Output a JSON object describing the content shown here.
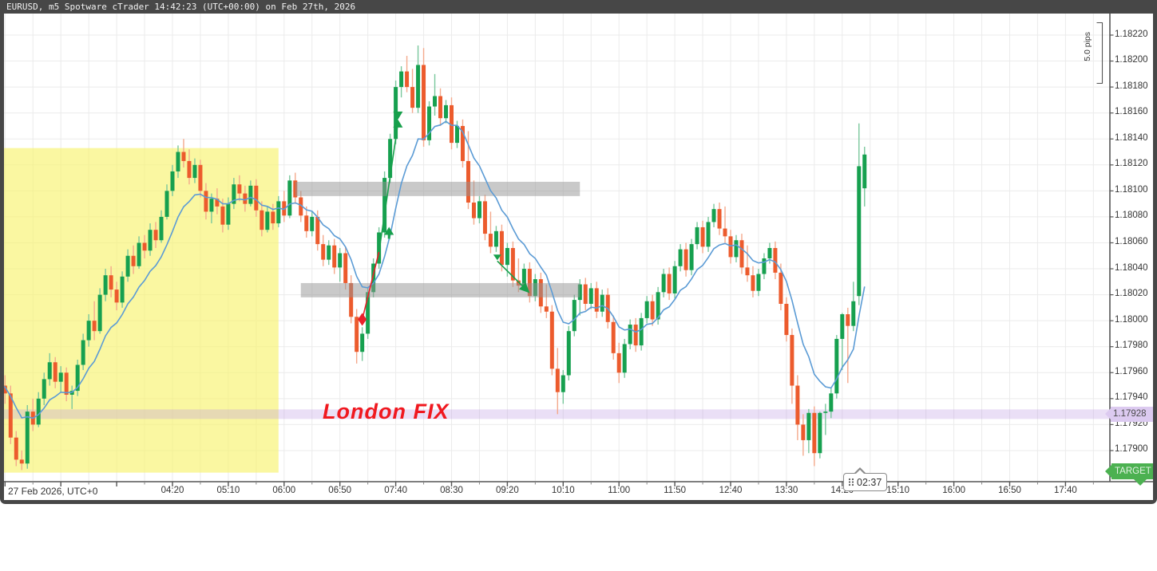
{
  "window": {
    "title": "EURUSD, m5 Spotware cTrader 14:42:23 (UTC+00:00) on Feb 27th, 2026"
  },
  "colors": {
    "chrome": "#474747",
    "grid": "#ebebeb",
    "axis_line": "#555555",
    "candle_up_body": "#16a04f",
    "candle_up_wick": "#79c79c",
    "candle_down_body": "#ec5b2d",
    "candle_down_wick": "#f4a98c",
    "moving_average": "#5b9bd5",
    "session_zone_fill": "rgba(247,242,110,0.65)",
    "supply_demand_fill": "rgba(148,148,148,0.50)",
    "fix_band_fill": "rgba(186,150,224,0.30)",
    "fix_tag_bg": "#dccaf0",
    "annotation_red": "#e8212b",
    "annotation_green": "#17a04b",
    "target_green": "#4cb151"
  },
  "price_axis": {
    "ticks": [
      "1.18220",
      "1.18200",
      "1.18180",
      "1.18160",
      "1.18140",
      "1.18120",
      "1.18100",
      "1.18080",
      "1.18060",
      "1.18040",
      "1.18020",
      "1.18000",
      "1.17980",
      "1.17960",
      "1.17940",
      "1.17920",
      "1.17900"
    ],
    "highlight": {
      "label": "1.17928",
      "price": 1.17928
    }
  },
  "time_axis": {
    "date_label": "27 Feb 2026, UTC+0",
    "ticks": [
      "04:20",
      "05:10",
      "06:00",
      "06:50",
      "07:40",
      "08:30",
      "09:20",
      "10:10",
      "11:00",
      "11:50",
      "12:40",
      "13:30",
      "14:20",
      "15:10",
      "16:00",
      "16:50",
      "17:40"
    ]
  },
  "scale_ruler": {
    "label": "5.0 pips"
  },
  "countdown": {
    "value": "02:37"
  },
  "target_marker": {
    "label": "TARGET",
    "price": 1.17884
  },
  "annotations": {
    "london_fix": {
      "text": "London FIX",
      "price": 1.17928
    },
    "session_zone": {
      "time_start": "01:45",
      "time_end": "05:55",
      "price_top": 1.18133,
      "price_bottom": 1.17883
    },
    "supply_zone": {
      "time_start": "06:10",
      "time_end": "10:25",
      "price_top": 1.18107,
      "price_bottom": 1.18096
    },
    "demand_zone": {
      "time_start": "06:15",
      "time_end": "10:25",
      "price_top": 1.18029,
      "price_bottom": 1.18018
    },
    "trade": {
      "entry_diamond": {
        "time": "07:10",
        "price": 1.18001
      },
      "path_mid": {
        "time": "07:25",
        "price": 1.18053
      },
      "path_end": {
        "time": "07:42",
        "price": 1.18152
      },
      "buy_arrow": {
        "time": "07:34",
        "price": 1.18068
      },
      "close_marker": {
        "time": "07:42",
        "price": 1.18155
      }
    },
    "sell_arrow": {
      "start": {
        "time": "09:11",
        "price": 1.18046
      },
      "end": {
        "time": "09:38",
        "price": 1.18023
      }
    }
  },
  "chart_data": {
    "type": "candlestick",
    "symbol": "EURUSD",
    "timeframe": "m5",
    "title": "EURUSD m5 - 27 Feb 2026",
    "start_time": "01:45",
    "interval_min": 5,
    "price_base": 1.17,
    "pip": 0.0001,
    "ohlc_unit": "pips above 1.17000, order [open,high,low,close]",
    "ylim": [
      1.1786,
      1.1823
    ],
    "xlim": [
      "01:45",
      "17:55"
    ],
    "grid": true,
    "moving_average": {
      "type": "EMA",
      "period": 10
    },
    "candles_pips": [
      [
        95.5,
        96.2,
        94.6,
        95.0
      ],
      [
        95.0,
        95.8,
        93.6,
        94.4
      ],
      [
        94.4,
        95.0,
        90.5,
        91.0
      ],
      [
        91.0,
        91.5,
        88.8,
        89.3
      ],
      [
        89.3,
        90.0,
        88.5,
        89.0
      ],
      [
        89.0,
        93.5,
        88.6,
        93.0
      ],
      [
        93.0,
        94.0,
        91.5,
        92.0
      ],
      [
        92.0,
        94.5,
        91.8,
        94.0
      ],
      [
        94.0,
        96.0,
        93.5,
        95.5
      ],
      [
        95.5,
        97.5,
        95.0,
        96.8
      ],
      [
        96.8,
        97.2,
        94.8,
        95.3
      ],
      [
        95.3,
        96.5,
        94.5,
        96.0
      ],
      [
        96.0,
        96.4,
        93.8,
        94.3
      ],
      [
        94.3,
        95.0,
        93.2,
        94.6
      ],
      [
        94.6,
        97.0,
        94.2,
        96.6
      ],
      [
        96.6,
        99.0,
        96.2,
        98.5
      ],
      [
        98.5,
        100.5,
        98.0,
        100.0
      ],
      [
        100.0,
        101.5,
        98.5,
        99.2
      ],
      [
        99.2,
        102.5,
        99.0,
        102.0
      ],
      [
        102.0,
        104.0,
        101.5,
        103.5
      ],
      [
        103.5,
        104.2,
        101.8,
        102.4
      ],
      [
        102.4,
        103.0,
        100.8,
        101.4
      ],
      [
        101.4,
        103.8,
        101.0,
        103.4
      ],
      [
        103.4,
        105.5,
        103.0,
        105.0
      ],
      [
        105.0,
        105.8,
        103.6,
        104.2
      ],
      [
        104.2,
        106.5,
        104.0,
        106.0
      ],
      [
        106.0,
        106.6,
        104.8,
        105.4
      ],
      [
        105.4,
        107.5,
        105.0,
        107.0
      ],
      [
        107.0,
        107.6,
        105.6,
        106.2
      ],
      [
        106.2,
        108.5,
        106.0,
        108.0
      ],
      [
        108.0,
        110.5,
        107.8,
        110.0
      ],
      [
        110.0,
        112.0,
        109.6,
        111.5
      ],
      [
        111.5,
        113.5,
        111.0,
        113.0
      ],
      [
        113.0,
        114.0,
        111.8,
        112.3
      ],
      [
        112.3,
        113.2,
        110.5,
        111.0
      ],
      [
        111.0,
        112.5,
        110.6,
        112.0
      ],
      [
        112.0,
        112.4,
        109.5,
        110.0
      ],
      [
        110.0,
        110.6,
        107.8,
        108.4
      ],
      [
        108.4,
        109.8,
        107.5,
        109.4
      ],
      [
        109.4,
        110.2,
        108.2,
        108.8
      ],
      [
        108.8,
        109.4,
        106.8,
        107.4
      ],
      [
        107.4,
        109.5,
        107.0,
        109.0
      ],
      [
        109.0,
        111.0,
        108.6,
        110.5
      ],
      [
        110.5,
        111.2,
        109.2,
        109.8
      ],
      [
        109.8,
        110.4,
        108.4,
        109.0
      ],
      [
        109.0,
        110.8,
        108.8,
        110.4
      ],
      [
        110.4,
        110.9,
        108.0,
        108.5
      ],
      [
        108.5,
        109.2,
        106.5,
        107.0
      ],
      [
        107.0,
        108.8,
        106.8,
        108.4
      ],
      [
        108.4,
        109.0,
        107.0,
        107.5
      ],
      [
        107.5,
        109.6,
        107.2,
        109.2
      ],
      [
        109.2,
        110.0,
        107.6,
        108.1
      ],
      [
        108.1,
        111.2,
        107.9,
        110.8
      ],
      [
        110.8,
        111.4,
        109.0,
        109.5
      ],
      [
        109.5,
        110.0,
        107.6,
        108.1
      ],
      [
        108.1,
        108.8,
        106.4,
        106.9
      ],
      [
        106.9,
        108.4,
        106.5,
        108.0
      ],
      [
        108.0,
        108.5,
        105.4,
        105.9
      ],
      [
        105.9,
        106.6,
        104.2,
        104.7
      ],
      [
        104.7,
        106.2,
        104.3,
        105.8
      ],
      [
        105.8,
        106.3,
        103.6,
        104.1
      ],
      [
        104.1,
        105.6,
        103.0,
        105.2
      ],
      [
        105.2,
        105.7,
        102.4,
        102.9
      ],
      [
        102.9,
        103.5,
        99.8,
        100.3
      ],
      [
        100.3,
        100.9,
        96.7,
        97.6
      ],
      [
        97.6,
        99.5,
        96.9,
        99.0
      ],
      [
        99.0,
        102.6,
        98.6,
        102.2
      ],
      [
        102.2,
        104.8,
        101.8,
        104.4
      ],
      [
        104.4,
        107.2,
        104.0,
        106.8
      ],
      [
        106.8,
        111.5,
        106.4,
        111.0
      ],
      [
        111.0,
        114.4,
        110.6,
        114.0
      ],
      [
        114.0,
        118.5,
        113.6,
        118.0
      ],
      [
        118.0,
        119.6,
        117.2,
        119.2
      ],
      [
        119.2,
        120.4,
        117.6,
        118.0
      ],
      [
        118.0,
        119.4,
        116.0,
        116.4
      ],
      [
        116.4,
        121.2,
        116.0,
        119.7
      ],
      [
        119.7,
        121.0,
        113.4,
        113.9
      ],
      [
        113.9,
        116.9,
        113.5,
        116.5
      ],
      [
        116.5,
        119.0,
        115.8,
        117.3
      ],
      [
        117.3,
        117.9,
        115.0,
        115.6
      ],
      [
        115.6,
        117.0,
        115.2,
        116.6
      ],
      [
        116.6,
        117.2,
        113.2,
        113.7
      ],
      [
        113.7,
        115.4,
        113.3,
        115.0
      ],
      [
        115.0,
        115.5,
        111.8,
        112.3
      ],
      [
        112.3,
        114.6,
        108.6,
        109.1
      ],
      [
        109.1,
        110.8,
        107.4,
        107.9
      ],
      [
        107.9,
        109.6,
        107.5,
        109.2
      ],
      [
        109.2,
        109.7,
        106.2,
        106.7
      ],
      [
        106.7,
        108.4,
        105.2,
        105.7
      ],
      [
        105.7,
        107.3,
        105.3,
        106.9
      ],
      [
        106.9,
        107.4,
        103.8,
        104.3
      ],
      [
        104.3,
        106.0,
        103.4,
        105.6
      ],
      [
        105.6,
        106.1,
        102.6,
        103.1
      ],
      [
        103.1,
        104.8,
        102.2,
        102.7
      ],
      [
        102.7,
        104.4,
        102.3,
        104.0
      ],
      [
        104.0,
        104.5,
        101.4,
        101.9
      ],
      [
        101.9,
        103.6,
        101.5,
        103.2
      ],
      [
        103.2,
        103.7,
        100.6,
        101.1
      ],
      [
        101.1,
        102.8,
        100.2,
        100.7
      ],
      [
        100.7,
        101.2,
        95.8,
        96.3
      ],
      [
        96.3,
        97.9,
        92.8,
        94.5
      ],
      [
        94.5,
        96.2,
        93.6,
        95.8
      ],
      [
        95.8,
        99.6,
        95.4,
        99.2
      ],
      [
        99.2,
        102.0,
        98.8,
        101.6
      ],
      [
        101.6,
        103.2,
        100.4,
        102.8
      ],
      [
        102.8,
        103.3,
        100.8,
        101.3
      ],
      [
        101.3,
        102.9,
        100.9,
        102.5
      ],
      [
        102.5,
        103.0,
        100.2,
        100.7
      ],
      [
        100.7,
        102.4,
        100.3,
        102.0
      ],
      [
        102.0,
        102.5,
        99.4,
        99.9
      ],
      [
        99.9,
        100.4,
        97.0,
        97.5
      ],
      [
        97.5,
        98.3,
        95.2,
        96.0
      ],
      [
        96.0,
        98.6,
        95.6,
        98.2
      ],
      [
        98.2,
        100.1,
        97.8,
        99.7
      ],
      [
        99.7,
        100.2,
        97.6,
        98.1
      ],
      [
        98.1,
        100.6,
        97.7,
        100.2
      ],
      [
        100.2,
        101.9,
        99.8,
        101.5
      ],
      [
        101.5,
        102.0,
        99.6,
        100.1
      ],
      [
        100.1,
        102.6,
        99.7,
        102.2
      ],
      [
        102.2,
        104.0,
        101.8,
        103.6
      ],
      [
        103.6,
        104.1,
        101.6,
        102.1
      ],
      [
        102.1,
        104.6,
        101.7,
        104.2
      ],
      [
        104.2,
        105.9,
        103.8,
        105.5
      ],
      [
        105.5,
        106.0,
        103.4,
        103.9
      ],
      [
        103.9,
        106.3,
        103.5,
        105.9
      ],
      [
        105.9,
        107.6,
        105.5,
        107.2
      ],
      [
        107.2,
        107.7,
        105.2,
        105.7
      ],
      [
        105.7,
        108.0,
        105.3,
        107.6
      ],
      [
        107.6,
        109.0,
        107.2,
        108.6
      ],
      [
        108.6,
        109.1,
        106.6,
        107.1
      ],
      [
        107.1,
        108.8,
        106.0,
        106.5
      ],
      [
        106.5,
        107.0,
        104.4,
        104.9
      ],
      [
        104.9,
        106.6,
        104.5,
        106.2
      ],
      [
        106.2,
        106.7,
        103.6,
        104.1
      ],
      [
        104.1,
        105.8,
        103.0,
        103.5
      ],
      [
        103.5,
        104.2,
        101.8,
        102.3
      ],
      [
        102.3,
        104.0,
        101.9,
        103.6
      ],
      [
        103.6,
        105.2,
        103.2,
        104.8
      ],
      [
        104.8,
        106.0,
        104.4,
        105.6
      ],
      [
        105.6,
        106.1,
        103.2,
        103.7
      ],
      [
        103.7,
        104.4,
        100.8,
        101.3
      ],
      [
        101.3,
        101.8,
        98.4,
        98.9
      ],
      [
        98.9,
        99.4,
        93.6,
        95.0
      ],
      [
        95.0,
        95.8,
        90.8,
        92.0
      ],
      [
        92.0,
        92.8,
        89.6,
        90.8
      ],
      [
        90.8,
        93.2,
        89.8,
        92.9
      ],
      [
        92.9,
        93.4,
        88.8,
        89.8
      ],
      [
        89.8,
        93.0,
        89.4,
        92.9
      ],
      [
        92.9,
        93.6,
        91.2,
        93.0
      ],
      [
        93.0,
        94.8,
        92.5,
        94.4
      ],
      [
        94.4,
        98.9,
        94.0,
        98.6
      ],
      [
        98.6,
        100.6,
        96.2,
        100.5
      ],
      [
        100.5,
        101.0,
        95.2,
        99.6
      ],
      [
        99.6,
        103.0,
        99.2,
        101.5
      ],
      [
        101.9,
        115.2,
        101.2,
        111.9
      ],
      [
        110.2,
        113.4,
        108.8,
        112.8
      ]
    ]
  }
}
